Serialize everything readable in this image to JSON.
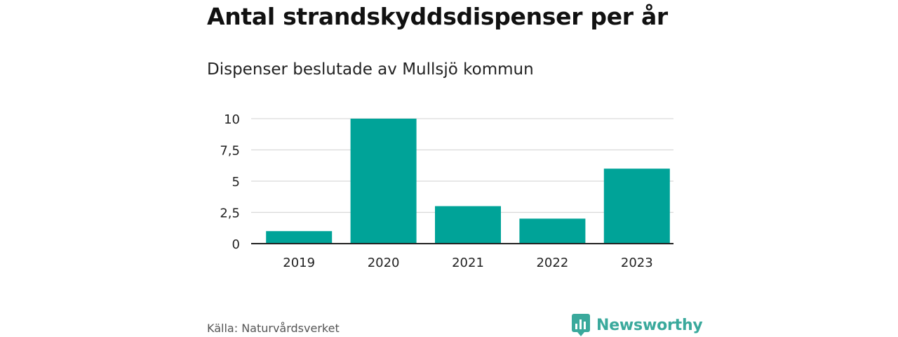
{
  "header": {
    "title": "Antal strandskyddsdispenser per år",
    "subtitle": "Dispenser beslutade av Mullsjö kommun"
  },
  "footer": {
    "source": "Källa: Naturvårdsverket",
    "brand": "Newsworthy",
    "brand_icon": "newsworthy-logo-icon"
  },
  "colors": {
    "bar": "#00a398",
    "brand": "#3aa99c",
    "grid": "#d9d9d9",
    "axis": "#222222"
  },
  "chart_data": {
    "type": "bar",
    "title": "Antal strandskyddsdispenser per år",
    "subtitle": "Dispenser beslutade av Mullsjö kommun",
    "xlabel": "",
    "ylabel": "",
    "categories": [
      "2019",
      "2020",
      "2021",
      "2022",
      "2023"
    ],
    "values": [
      1,
      10,
      3,
      2,
      6
    ],
    "ylim": [
      0,
      10
    ],
    "yticks": [
      0,
      2.5,
      5,
      7.5,
      10
    ],
    "ytick_labels": [
      "0",
      "2,5",
      "5",
      "7,5",
      "10"
    ],
    "grid": true
  }
}
